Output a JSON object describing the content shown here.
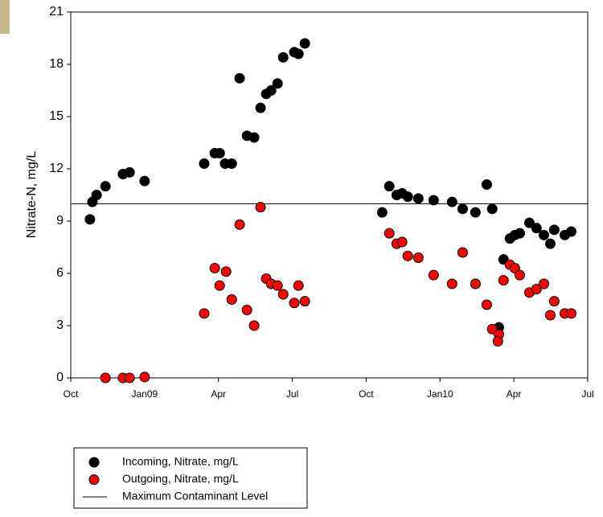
{
  "chart_data": {
    "type": "scatter",
    "ylabel": "Nitrate-N, mg/L",
    "xlim": [
      0,
      21
    ],
    "xticks": [
      {
        "value": 0,
        "label": "Oct"
      },
      {
        "value": 3,
        "label": "Jan09"
      },
      {
        "value": 6,
        "label": "Apr"
      },
      {
        "value": 9,
        "label": "Jul"
      },
      {
        "value": 12,
        "label": "Oct"
      },
      {
        "value": 15,
        "label": "Jan10"
      },
      {
        "value": 18,
        "label": "Apr"
      },
      {
        "value": 21,
        "label": "Jul"
      }
    ],
    "ylim": [
      0,
      21
    ],
    "yticks": [
      0,
      3,
      6,
      9,
      12,
      15,
      18,
      21
    ],
    "legend": "bottom-left",
    "series": [
      {
        "name": "Incoming, Nitrate, mg/L",
        "color": "#000000",
        "x": [
          0.78,
          0.88,
          1.05,
          1.41,
          2.12,
          2.39,
          3.0,
          5.42,
          5.85,
          6.05,
          6.27,
          6.54,
          6.86,
          7.16,
          7.45,
          7.71,
          7.94,
          8.14,
          8.4,
          8.63,
          9.08,
          9.25,
          9.51,
          12.65,
          12.94,
          13.24,
          13.46,
          13.69,
          14.12,
          14.74,
          15.49,
          15.92,
          16.44,
          16.9,
          17.12,
          17.39,
          17.58,
          17.84,
          18.04,
          18.24,
          18.63,
          18.92,
          19.22,
          19.48,
          19.64,
          20.07,
          20.33
        ],
        "values": [
          9.1,
          10.1,
          10.5,
          11.0,
          11.7,
          11.8,
          11.3,
          12.3,
          12.9,
          12.9,
          12.3,
          12.3,
          17.2,
          13.9,
          13.8,
          15.5,
          16.3,
          16.5,
          16.9,
          18.4,
          18.7,
          18.6,
          19.2,
          9.5,
          11.0,
          10.5,
          10.6,
          10.4,
          10.3,
          10.2,
          10.1,
          9.7,
          9.5,
          11.1,
          9.7,
          2.9,
          6.8,
          8.0,
          8.2,
          8.3,
          8.9,
          8.6,
          8.2,
          7.7,
          8.5,
          8.2,
          8.4
        ]
      },
      {
        "name": "Outgoing, Nitrate, mg/L",
        "color": "#ff0000",
        "x": [
          1.41,
          2.12,
          2.39,
          3.0,
          5.42,
          5.85,
          6.05,
          6.31,
          6.54,
          6.86,
          7.16,
          7.45,
          7.71,
          7.94,
          8.14,
          8.4,
          8.63,
          9.08,
          9.25,
          9.51,
          12.94,
          13.24,
          13.46,
          13.69,
          14.12,
          14.74,
          15.49,
          15.92,
          16.44,
          16.9,
          17.12,
          17.39,
          17.35,
          17.58,
          17.84,
          18.04,
          18.24,
          18.63,
          18.92,
          19.22,
          19.48,
          19.64,
          20.07,
          20.33
        ],
        "values": [
          0,
          0,
          0,
          0.05,
          3.7,
          6.3,
          5.3,
          6.1,
          4.5,
          8.8,
          3.9,
          3.0,
          9.8,
          5.7,
          5.4,
          5.3,
          4.8,
          4.3,
          5.3,
          4.4,
          8.3,
          7.7,
          7.8,
          7.0,
          6.9,
          5.9,
          5.4,
          7.2,
          5.4,
          4.2,
          2.8,
          2.5,
          2.1,
          5.6,
          6.5,
          6.3,
          5.9,
          4.9,
          5.1,
          5.4,
          3.6,
          4.4,
          3.7,
          3.7
        ]
      }
    ],
    "reference_line": {
      "name": "Maximum Contaminant Level",
      "value": 10,
      "color": "#000000"
    }
  }
}
